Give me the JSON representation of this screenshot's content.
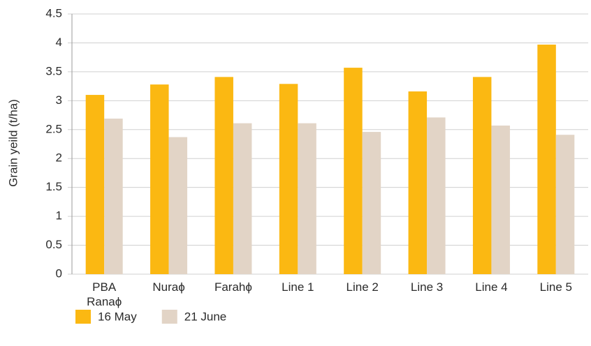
{
  "chart_data": {
    "type": "bar",
    "y_label": "Grain yeild (t/ha)",
    "categories": [
      "PBA Ranaϕ",
      "Nuraϕ",
      "Farahϕ",
      "Line 1",
      "Line 2",
      "Line 3",
      "Line 4",
      "Line 5"
    ],
    "series": [
      {
        "name": "16 May",
        "color": "#fbb812",
        "values": [
          3.1,
          3.28,
          3.41,
          3.29,
          3.57,
          3.16,
          3.41,
          3.97
        ]
      },
      {
        "name": "21 June",
        "color": "#e2d4c6",
        "values": [
          2.69,
          2.37,
          2.61,
          2.61,
          2.46,
          2.71,
          2.57,
          2.41
        ]
      }
    ],
    "ylim": [
      0,
      4.5
    ],
    "yticks": [
      0,
      0.5,
      1,
      1.5,
      2,
      2.5,
      3,
      3.5,
      4,
      4.5
    ],
    "grid": true
  }
}
